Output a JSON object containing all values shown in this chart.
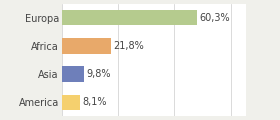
{
  "categories": [
    "Europa",
    "Africa",
    "Asia",
    "America"
  ],
  "values": [
    60.3,
    21.8,
    9.8,
    8.1
  ],
  "labels": [
    "60,3%",
    "21,8%",
    "9,8%",
    "8,1%"
  ],
  "bar_colors": [
    "#b5cb8e",
    "#e8a96a",
    "#6e7fba",
    "#f5d06e"
  ],
  "background_color": "#f0f0eb",
  "plot_bg_color": "#ffffff",
  "xlim": [
    0,
    82
  ],
  "bar_height": 0.55,
  "label_fontsize": 7.0,
  "category_fontsize": 7.0,
  "figsize": [
    2.8,
    1.2
  ],
  "dpi": 100
}
